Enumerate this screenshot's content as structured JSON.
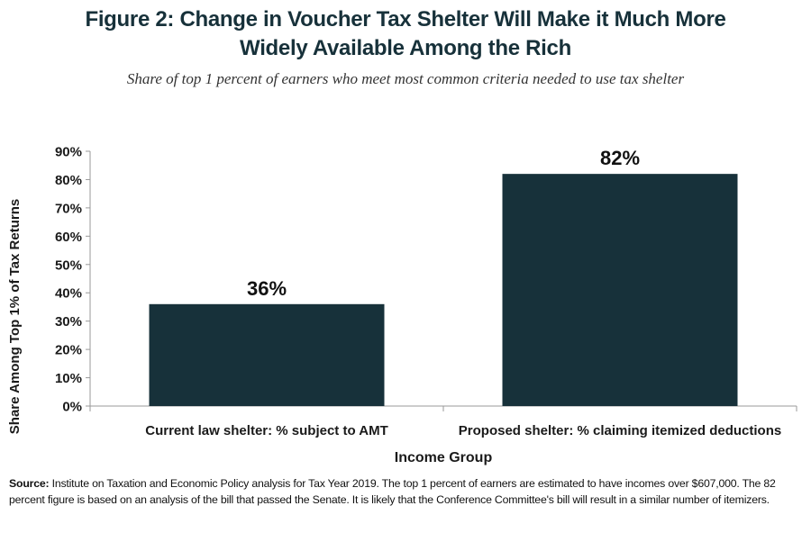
{
  "title_line1": "Figure 2: Change in Voucher Tax Shelter Will Make it Much More",
  "title_line2": "Widely Available Among the Rich",
  "subtitle": "Share of top 1 percent of earners who meet most common criteria needed to use tax shelter",
  "source_label": "Source:",
  "source_text": "Institute on Taxation and Economic Policy analysis for Tax Year 2019.  The top 1 percent of earners are estimated to have incomes over $607,000. The 82 percent figure is based on an analysis of the bill that passed the Senate. It is likely that the Conference Committee's bill will result in a similar number of itemizers.",
  "colors": {
    "bar": "#17313a",
    "axis": "#999999"
  },
  "chart_data": {
    "type": "bar",
    "categories": [
      "Current law shelter: % subject to AMT",
      "Proposed shelter: % claiming itemized deductions"
    ],
    "values": [
      36,
      82
    ],
    "data_labels": [
      "36%",
      "82%"
    ],
    "title": "Figure 2: Change in Voucher Tax Shelter Will Make it Much More Widely Available Among the Rich",
    "subtitle": "Share of top 1 percent of earners who meet most common criteria needed to use tax shelter",
    "xlabel": "Income Group",
    "ylabel": "Share Among Top 1% of Tax Returns",
    "ylim": [
      0,
      90
    ],
    "yticks": [
      0,
      10,
      20,
      30,
      40,
      50,
      60,
      70,
      80,
      90
    ],
    "ytick_labels": [
      "0%",
      "10%",
      "20%",
      "30%",
      "40%",
      "50%",
      "60%",
      "70%",
      "80%",
      "90%"
    ],
    "grid": false,
    "legend": "none"
  }
}
